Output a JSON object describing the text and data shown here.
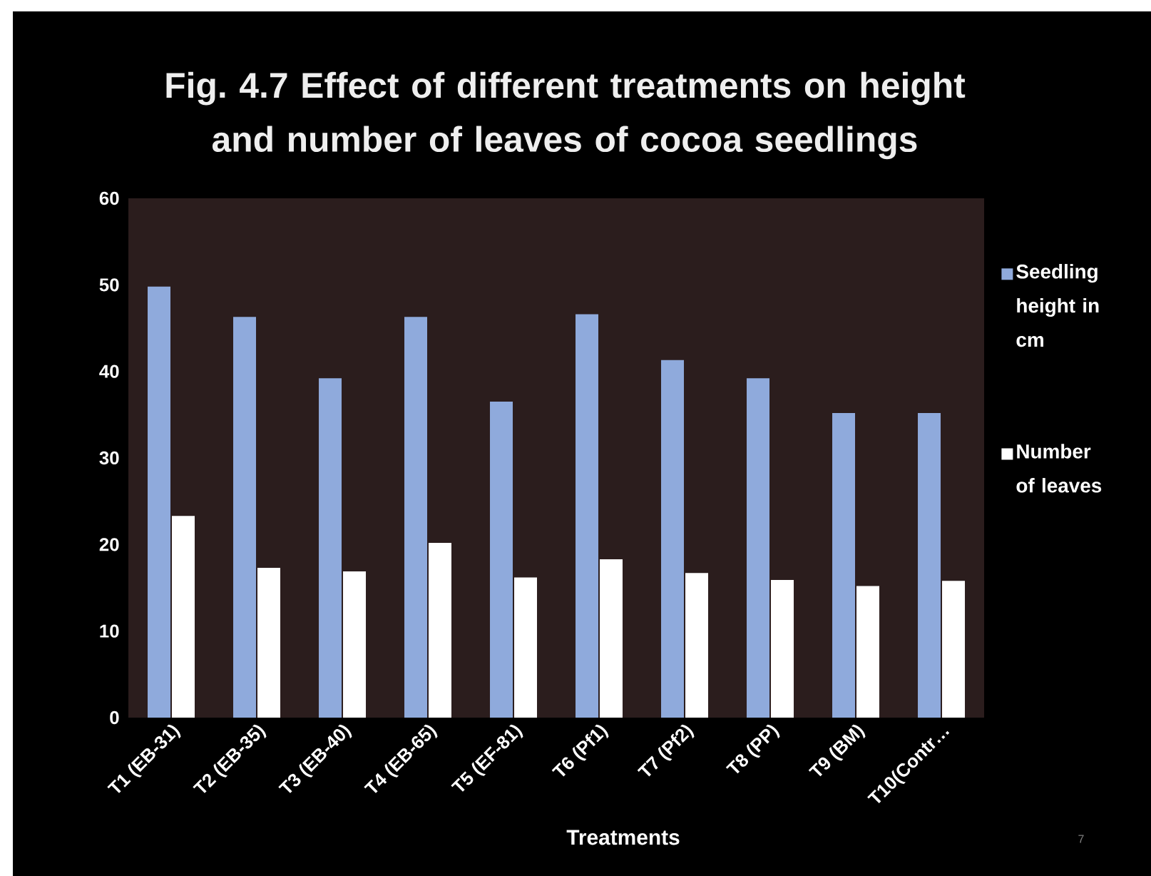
{
  "chart_data": {
    "type": "bar",
    "title": "Fig. 4.7 Effect of different treatments on height and number of leaves of cocoa seedlings",
    "xlabel": "Treatments",
    "categories": [
      "T1 (EB-31)",
      "T2 (EB-35)",
      "T3 (EB-40)",
      "T4 (EB-65)",
      "T5 (EF-81)",
      "T6 (Pf1)",
      "T7 (Pf2)",
      "T8 (PP)",
      "T9 (BM)",
      "T10(Contr…"
    ],
    "series": [
      {
        "name": "Seedling height in cm",
        "color": "#8faadc",
        "values": [
          49.8,
          46.3,
          39.2,
          46.3,
          36.5,
          46.6,
          41.3,
          39.2,
          35.2,
          35.2
        ]
      },
      {
        "name": "Number of leaves",
        "color": "#ffffff",
        "values": [
          23.3,
          17.3,
          16.9,
          20.2,
          16.2,
          18.3,
          16.7,
          15.9,
          15.2,
          15.8
        ]
      }
    ],
    "ylim": [
      0,
      60
    ],
    "yticks": [
      0,
      10,
      20,
      30,
      40,
      50,
      60
    ],
    "legend": "right",
    "annotations": [
      "7"
    ]
  }
}
